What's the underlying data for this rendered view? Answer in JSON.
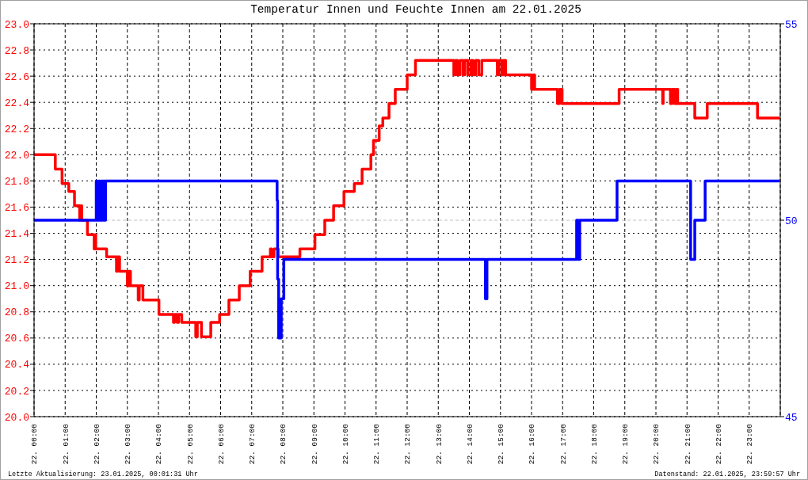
{
  "chart_data": {
    "type": "step",
    "title": "Temperatur Innen und Feuchte Innen am 22.01.2025",
    "annotations": [
      "Letzte Aktualisierung: 23.01.2025, 00:01:31 Uhr",
      "Datenstand: 22.01.2025, 23:59:57 Uhr"
    ],
    "xlim": [
      "2025-01-22T00:00",
      "2025-01-23T00:00"
    ],
    "xticks": [
      {
        "value": "2025-01-22T00:00",
        "label": "22. 00:00"
      },
      {
        "value": "2025-01-22T01:00",
        "label": "22. 01:00"
      },
      {
        "value": "2025-01-22T02:00",
        "label": "22. 02:00"
      },
      {
        "value": "2025-01-22T03:00",
        "label": "22. 03:00"
      },
      {
        "value": "2025-01-22T04:00",
        "label": "22. 04:00"
      },
      {
        "value": "2025-01-22T05:00",
        "label": "22. 05:00"
      },
      {
        "value": "2025-01-22T06:00",
        "label": "22. 06:00"
      },
      {
        "value": "2025-01-22T07:00",
        "label": "22. 07:00"
      },
      {
        "value": "2025-01-22T08:00",
        "label": "22. 08:00"
      },
      {
        "value": "2025-01-22T09:00",
        "label": "22. 09:00"
      },
      {
        "value": "2025-01-22T10:00",
        "label": "22. 10:00"
      },
      {
        "value": "2025-01-22T11:00",
        "label": "22. 11:00"
      },
      {
        "value": "2025-01-22T12:00",
        "label": "22. 12:00"
      },
      {
        "value": "2025-01-22T13:00",
        "label": "22. 13:00"
      },
      {
        "value": "2025-01-22T14:00",
        "label": "22. 14:00"
      },
      {
        "value": "2025-01-22T15:00",
        "label": "22. 15:00"
      },
      {
        "value": "2025-01-22T16:00",
        "label": "22. 16:00"
      },
      {
        "value": "2025-01-22T17:00",
        "label": "22. 17:00"
      },
      {
        "value": "2025-01-22T18:00",
        "label": "22. 18:00"
      },
      {
        "value": "2025-01-22T19:00",
        "label": "22. 19:00"
      },
      {
        "value": "2025-01-22T20:00",
        "label": "22. 20:00"
      },
      {
        "value": "2025-01-22T21:00",
        "label": "22. 21:00"
      },
      {
        "value": "2025-01-22T22:00",
        "label": "22. 22:00"
      },
      {
        "value": "2025-01-22T23:00",
        "label": "22. 23:00"
      }
    ],
    "ylim": [
      20,
      23
    ],
    "yticks": [
      {
        "value": 20,
        "label": "20.0"
      },
      20.2,
      20.4,
      20.6,
      20.8,
      {
        "value": 21,
        "label": "21.0"
      },
      21.2,
      21.4,
      21.6,
      21.8,
      {
        "value": 22,
        "label": "22.0"
      },
      22.2,
      22.4,
      22.6,
      22.8,
      {
        "value": 23,
        "label": "23.0"
      }
    ],
    "y2lim": [
      45,
      55
    ],
    "y2ticks": [
      45,
      50,
      55
    ],
    "grid": true,
    "ref_lines": [
      {
        "axis": "y2",
        "value": 50,
        "color": "#c0c0c0",
        "line_style": "dashed"
      }
    ],
    "series": [
      {
        "color": "#ff0000",
        "x": [
          "2025-01-22T00:00",
          "2025-01-22T00:41",
          "2025-01-22T00:54",
          "2025-01-22T01:07",
          "2025-01-22T01:18",
          "2025-01-22T01:28",
          "2025-01-22T01:30",
          "2025-01-22T01:32",
          "2025-01-22T01:43",
          "2025-01-22T01:56",
          "2025-01-22T01:58",
          "2025-01-22T01:59",
          "2025-01-22T02:20",
          "2025-01-22T02:39",
          "2025-01-22T02:41",
          "2025-01-22T02:45",
          "2025-01-22T03:00",
          "2025-01-22T03:03",
          "2025-01-22T03:06",
          "2025-01-22T03:21",
          "2025-01-22T03:23",
          "2025-01-22T03:30",
          "2025-01-22T04:01",
          "2025-01-22T04:29",
          "2025-01-22T04:31",
          "2025-01-22T04:36",
          "2025-01-22T04:39",
          "2025-01-22T04:45",
          "2025-01-22T05:12",
          "2025-01-22T05:15",
          "2025-01-22T05:23",
          "2025-01-22T05:41",
          "2025-01-22T05:58",
          "2025-01-22T06:16",
          "2025-01-22T06:36",
          "2025-01-22T06:57",
          "2025-01-22T07:20",
          "2025-01-22T07:36",
          "2025-01-22T07:38",
          "2025-01-22T07:43",
          "2025-01-22T07:51",
          "2025-01-22T08:33",
          "2025-01-22T09:02",
          "2025-01-22T09:21",
          "2025-01-22T09:38",
          "2025-01-22T09:58",
          "2025-01-22T10:18",
          "2025-01-22T10:33",
          "2025-01-22T10:50",
          "2025-01-22T10:55",
          "2025-01-22T11:06",
          "2025-01-22T11:13",
          "2025-01-22T11:25",
          "2025-01-22T11:37",
          "2025-01-22T12:00",
          "2025-01-22T12:16",
          "2025-01-22T13:30",
          "2025-01-22T13:33",
          "2025-01-22T13:37",
          "2025-01-22T13:42",
          "2025-01-22T13:48",
          "2025-01-22T13:51",
          "2025-01-22T13:57",
          "2025-01-22T14:03",
          "2025-01-22T14:07",
          "2025-01-22T14:12",
          "2025-01-22T14:18",
          "2025-01-22T14:24",
          "2025-01-22T14:54",
          "2025-01-22T14:57",
          "2025-01-22T15:03",
          "2025-01-22T15:06",
          "2025-01-22T15:10",
          "2025-01-22T16:00",
          "2025-01-22T16:03",
          "2025-01-22T16:06",
          "2025-01-22T16:50",
          "2025-01-22T16:54",
          "2025-01-22T16:59",
          "2025-01-22T18:49",
          "2025-01-22T20:13",
          "2025-01-22T20:14",
          "2025-01-22T20:28",
          "2025-01-22T20:31",
          "2025-01-22T20:36",
          "2025-01-22T20:39",
          "2025-01-22T20:42",
          "2025-01-22T21:15",
          "2025-01-22T21:39",
          "2025-01-22T23:16",
          "2025-01-22T23:59"
        ],
        "values": [
          22.0,
          21.89,
          21.78,
          21.72,
          21.61,
          21.5,
          21.61,
          21.5,
          21.39,
          21.28,
          21.39,
          21.28,
          21.22,
          21.11,
          21.22,
          21.11,
          21.0,
          21.11,
          21.0,
          20.89,
          21.0,
          20.89,
          20.78,
          20.72,
          20.78,
          20.72,
          20.78,
          20.72,
          20.61,
          20.72,
          20.61,
          20.72,
          20.78,
          20.89,
          21.0,
          21.11,
          21.22,
          21.28,
          21.22,
          21.28,
          21.22,
          21.28,
          21.39,
          21.5,
          21.61,
          21.72,
          21.78,
          21.89,
          22.0,
          22.11,
          22.22,
          22.28,
          22.39,
          22.5,
          22.61,
          22.72,
          22.61,
          22.72,
          22.61,
          22.72,
          22.61,
          22.72,
          22.61,
          22.72,
          22.61,
          22.72,
          22.61,
          22.72,
          22.61,
          22.72,
          22.61,
          22.72,
          22.61,
          22.5,
          22.61,
          22.5,
          22.39,
          22.5,
          22.39,
          22.5,
          22.39,
          22.5,
          22.39,
          22.5,
          22.39,
          22.5,
          22.39,
          22.28,
          22.39,
          22.28,
          22.28
        ]
      },
      {
        "color": "#0000ff",
        "axis": "y2",
        "x": [
          "2025-01-22T00:00",
          "2025-01-22T02:00",
          "2025-01-22T02:02",
          "2025-01-22T02:05",
          "2025-01-22T02:07",
          "2025-01-22T02:10",
          "2025-01-22T02:12",
          "2025-01-22T02:14",
          "2025-01-22T02:16",
          "2025-01-22T02:18",
          "2025-01-22T07:49",
          "2025-01-22T07:50",
          "2025-01-22T07:52",
          "2025-01-22T07:57",
          "2025-01-22T08:02",
          "2025-01-22T14:31",
          "2025-01-22T14:34",
          "2025-01-22T17:27",
          "2025-01-22T17:30",
          "2025-01-22T17:33",
          "2025-01-22T18:45",
          "2025-01-22T21:07",
          "2025-01-22T21:15",
          "2025-01-22T21:35",
          "2025-01-22T23:59"
        ],
        "values": [
          50,
          51,
          50,
          51,
          50,
          51,
          50,
          51,
          50,
          51,
          50.5,
          48.5,
          47,
          48,
          49,
          48,
          49,
          50,
          49,
          50,
          51,
          49,
          50,
          51,
          51
        ]
      }
    ]
  }
}
